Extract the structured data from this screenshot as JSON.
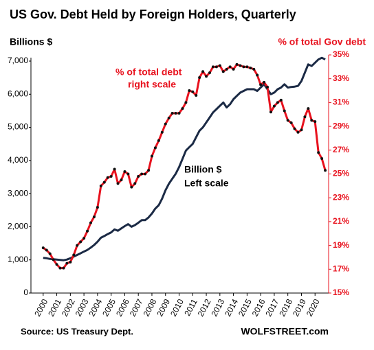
{
  "chart_data": {
    "type": "line",
    "title": "US Gov. Debt Held by Foreign Holders, Quarterly",
    "y_label": "Billions $",
    "y2_label": "% of total Gov debt",
    "annotations": [
      {
        "text": [
          "% of total debt",
          "right scale"
        ],
        "color": "#e8121e"
      },
      {
        "text": [
          "Billion $",
          "Left scale"
        ],
        "color": "#000000"
      }
    ],
    "source": "Source: US Treasury Dept.",
    "credit": "WOLFSTREET.com",
    "x": [
      2000,
      2000.25,
      2000.5,
      2000.75,
      2001,
      2001.25,
      2001.5,
      2001.75,
      2002,
      2002.25,
      2002.5,
      2002.75,
      2003,
      2003.25,
      2003.5,
      2003.75,
      2004,
      2004.25,
      2004.5,
      2004.75,
      2005,
      2005.25,
      2005.5,
      2005.75,
      2006,
      2006.25,
      2006.5,
      2006.75,
      2007,
      2007.25,
      2007.5,
      2007.75,
      2008,
      2008.25,
      2008.5,
      2008.75,
      2009,
      2009.25,
      2009.5,
      2009.75,
      2010,
      2010.25,
      2010.5,
      2010.75,
      2011,
      2011.25,
      2011.5,
      2011.75,
      2012,
      2012.25,
      2012.5,
      2012.75,
      2013,
      2013.25,
      2013.5,
      2013.75,
      2014,
      2014.25,
      2014.5,
      2014.75,
      2015,
      2015.25,
      2015.5,
      2015.75,
      2016,
      2016.25,
      2016.5,
      2016.75,
      2017,
      2017.25,
      2017.5,
      2017.75,
      2018,
      2018.25,
      2018.5,
      2018.75,
      2019,
      2019.25,
      2019.5,
      2019.75,
      2020,
      2020.25,
      2020.5,
      2020.75
    ],
    "series": [
      {
        "name": "Billion $",
        "color": "#1b2a45",
        "axis": "y",
        "values": [
          1060,
          1050,
          1030,
          1020,
          1010,
          1000,
          990,
          1010,
          1050,
          1100,
          1150,
          1200,
          1250,
          1300,
          1370,
          1450,
          1550,
          1670,
          1720,
          1780,
          1830,
          1920,
          1880,
          1950,
          2020,
          2080,
          2000,
          2050,
          2120,
          2200,
          2200,
          2280,
          2400,
          2550,
          2650,
          2850,
          3100,
          3300,
          3450,
          3600,
          3800,
          4050,
          4300,
          4400,
          4500,
          4700,
          4900,
          5000,
          5150,
          5300,
          5450,
          5550,
          5650,
          5750,
          5600,
          5700,
          5850,
          5950,
          6050,
          6100,
          6150,
          6150,
          6150,
          6100,
          6200,
          6300,
          6150,
          6000,
          6050,
          6150,
          6200,
          6300,
          6200,
          6220,
          6230,
          6250,
          6400,
          6650,
          6900,
          6850,
          6950,
          7050,
          7100,
          7050
        ]
      },
      {
        "name": "% of total debt",
        "color": "#e8121e",
        "axis": "y2",
        "values": [
          18.8,
          18.6,
          18.3,
          17.8,
          17.4,
          17.1,
          17.1,
          17.5,
          17.6,
          18.2,
          19.0,
          19.3,
          19.6,
          20.2,
          20.9,
          21.4,
          22.2,
          24.0,
          24.3,
          24.7,
          24.8,
          25.4,
          24.2,
          24.5,
          25.2,
          25.0,
          23.9,
          24.2,
          24.8,
          25.0,
          25.0,
          25.3,
          26.5,
          27.2,
          27.8,
          28.5,
          29.2,
          29.7,
          30.1,
          30.1,
          30.1,
          30.5,
          31.0,
          32.0,
          31.9,
          31.6,
          33.1,
          33.6,
          33.2,
          33.5,
          34.0,
          34.0,
          34.1,
          33.6,
          33.8,
          34.0,
          33.8,
          34.2,
          34.1,
          34.0,
          34.0,
          33.9,
          33.8,
          33.3,
          32.5,
          32.7,
          32.3,
          30.2,
          30.7,
          31.0,
          31.2,
          30.3,
          29.5,
          29.3,
          28.8,
          28.5,
          28.7,
          29.8,
          30.5,
          29.5,
          29.4,
          26.8,
          26.3,
          25.3
        ]
      }
    ],
    "xlim": [
      1999.1,
      2021
    ],
    "xticks": [
      2000,
      2001,
      2002,
      2003,
      2004,
      2005,
      2006,
      2007,
      2008,
      2009,
      2010,
      2011,
      2012,
      2013,
      2014,
      2015,
      2016,
      2017,
      2018,
      2019,
      2020
    ],
    "ylim": [
      0,
      7000
    ],
    "yticks": [
      0,
      {
        "value": 1000,
        "label": "1,000"
      },
      {
        "value": 2000,
        "label": "2,000"
      },
      {
        "value": 3000,
        "label": "3,000"
      },
      {
        "value": 4000,
        "label": "4,000"
      },
      {
        "value": 5000,
        "label": "5,000"
      },
      {
        "value": 6000,
        "label": "6,000"
      },
      {
        "value": 7000,
        "label": "7,000"
      }
    ],
    "y2lim": [
      15,
      35
    ],
    "y2ticks": [
      {
        "value": 15,
        "label": "15%"
      },
      {
        "value": 17,
        "label": "17%"
      },
      {
        "value": 19,
        "label": "19%"
      },
      {
        "value": 21,
        "label": "21%"
      },
      {
        "value": 23,
        "label": "23%"
      },
      {
        "value": 25,
        "label": "25%"
      },
      {
        "value": 27,
        "label": "27%"
      },
      {
        "value": 29,
        "label": "29%"
      },
      {
        "value": 31,
        "label": "31%"
      },
      {
        "value": 33,
        "label": "33%"
      },
      {
        "value": 35,
        "label": "35%"
      }
    ],
    "markers_on": "y2",
    "grid": false
  }
}
